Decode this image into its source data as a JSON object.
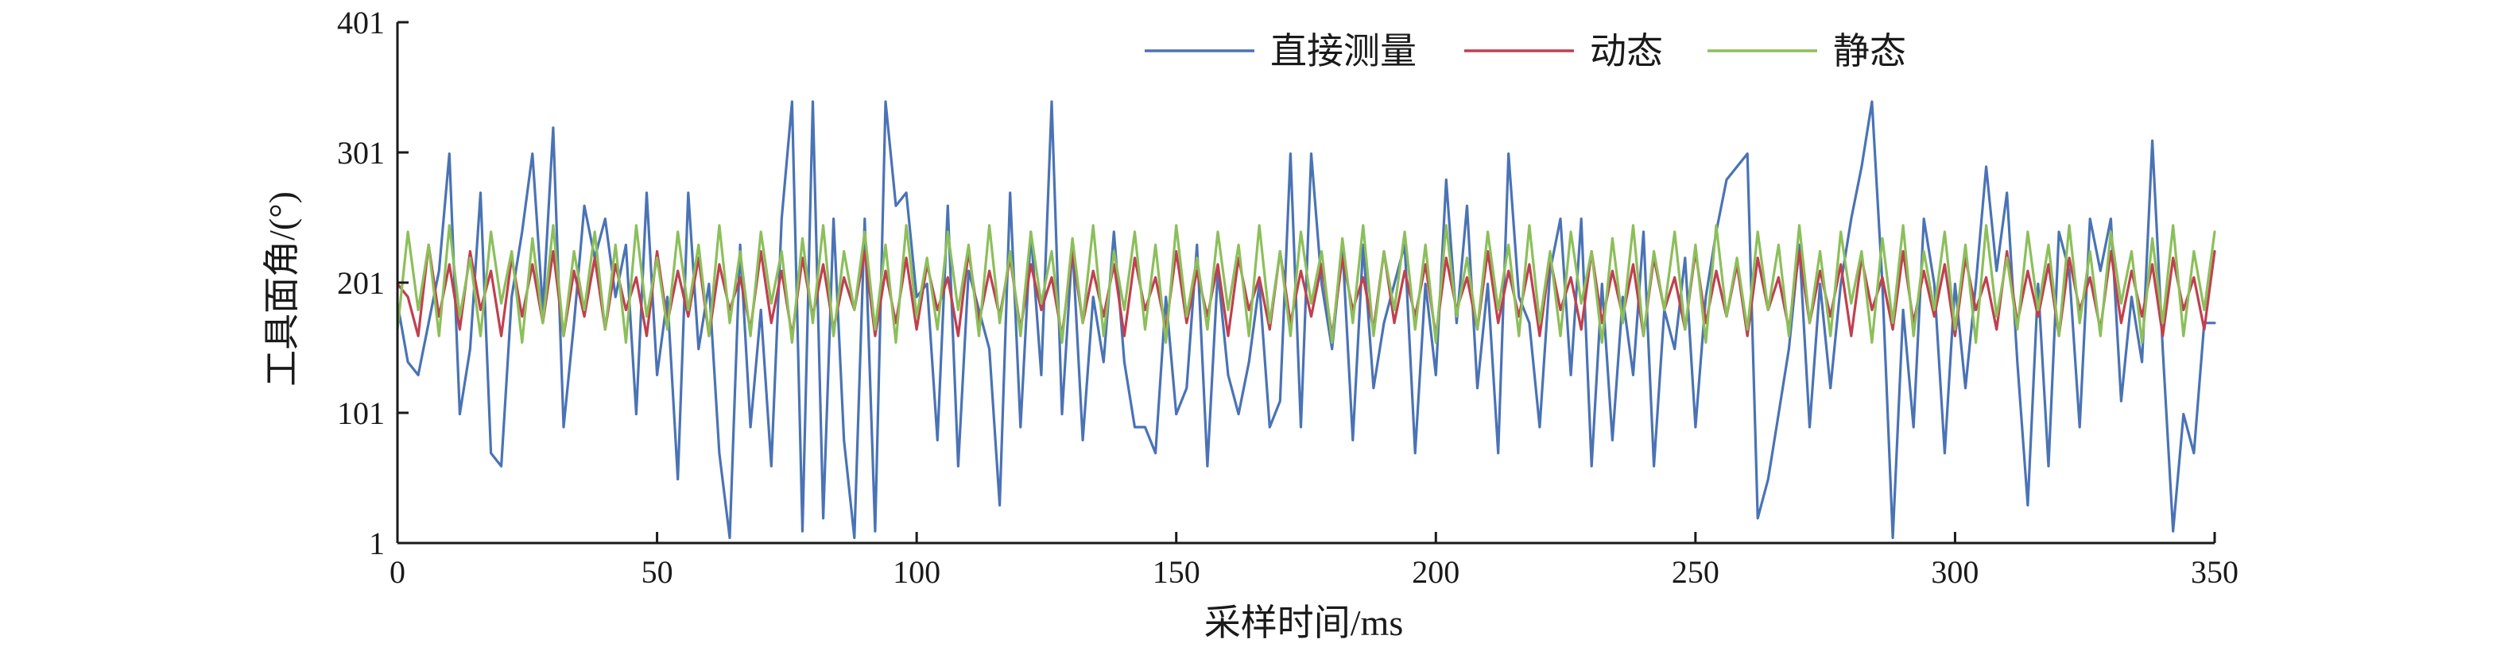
{
  "chart_data": {
    "type": "line",
    "title": "",
    "xlabel": "采样时间/ms",
    "ylabel": "工具面角/(°)",
    "xlim": [
      0,
      350
    ],
    "ylim": [
      1,
      401
    ],
    "xticks": [
      0,
      50,
      100,
      150,
      200,
      250,
      300,
      350
    ],
    "yticks": [
      1,
      101,
      201,
      301,
      401
    ],
    "grid": false,
    "legend_position": "top-center",
    "x": [
      0,
      2,
      4,
      6,
      8,
      10,
      12,
      14,
      16,
      18,
      20,
      22,
      24,
      26,
      28,
      30,
      32,
      34,
      36,
      38,
      40,
      42,
      44,
      46,
      48,
      50,
      52,
      54,
      56,
      58,
      60,
      62,
      64,
      66,
      68,
      70,
      72,
      74,
      76,
      78,
      80,
      82,
      84,
      86,
      88,
      90,
      92,
      94,
      96,
      98,
      100,
      102,
      104,
      106,
      108,
      110,
      112,
      114,
      116,
      118,
      120,
      122,
      124,
      126,
      128,
      130,
      132,
      134,
      136,
      138,
      140,
      142,
      144,
      146,
      148,
      150,
      152,
      154,
      156,
      158,
      160,
      162,
      164,
      166,
      168,
      170,
      172,
      174,
      176,
      178,
      180,
      182,
      184,
      186,
      188,
      190,
      192,
      194,
      196,
      198,
      200,
      202,
      204,
      206,
      208,
      210,
      212,
      214,
      216,
      218,
      220,
      222,
      224,
      226,
      228,
      230,
      232,
      234,
      236,
      238,
      240,
      242,
      244,
      246,
      248,
      250,
      252,
      254,
      256,
      258,
      260,
      262,
      264,
      266,
      268,
      270,
      272,
      274,
      276,
      278,
      280,
      282,
      284,
      286,
      288,
      290,
      292,
      294,
      296,
      298,
      300,
      302,
      304,
      306,
      308,
      310,
      312,
      314,
      316,
      318,
      320,
      322,
      324,
      326,
      328,
      330,
      332,
      334,
      336,
      338,
      340,
      342,
      344,
      346,
      348,
      350
    ],
    "series": [
      {
        "name": "直接测量",
        "color": "#4a73b5",
        "values": [
          185,
          140,
          130,
          170,
          210,
          300,
          100,
          150,
          270,
          70,
          60,
          190,
          240,
          300,
          180,
          320,
          90,
          170,
          260,
          220,
          250,
          190,
          230,
          100,
          270,
          130,
          190,
          50,
          270,
          150,
          200,
          70,
          5,
          230,
          90,
          180,
          60,
          250,
          340,
          10,
          340,
          20,
          250,
          80,
          5,
          250,
          10,
          340,
          260,
          270,
          190,
          200,
          80,
          260,
          60,
          210,
          180,
          150,
          30,
          270,
          90,
          240,
          130,
          340,
          100,
          230,
          80,
          190,
          140,
          240,
          140,
          90,
          90,
          70,
          190,
          100,
          120,
          230,
          60,
          210,
          130,
          100,
          140,
          200,
          90,
          110,
          300,
          90,
          300,
          200,
          150,
          230,
          80,
          230,
          120,
          170,
          200,
          230,
          70,
          200,
          130,
          280,
          170,
          260,
          120,
          200,
          70,
          300,
          190,
          170,
          90,
          210,
          250,
          130,
          250,
          60,
          200,
          80,
          190,
          130,
          240,
          60,
          180,
          150,
          220,
          90,
          190,
          240,
          280,
          290,
          300,
          20,
          50,
          100,
          150,
          230,
          90,
          200,
          120,
          200,
          250,
          290,
          340,
          200,
          5,
          180,
          90,
          250,
          200,
          70,
          200,
          120,
          200,
          290,
          210,
          270,
          140,
          30,
          200,
          60,
          240,
          210,
          90,
          250,
          210,
          250,
          110,
          190,
          140,
          310,
          150,
          10,
          100,
          70,
          170,
          170
        ]
      },
      {
        "name": "动态",
        "color": "#c0404f",
        "values": [
          200,
          190,
          160,
          230,
          175,
          215,
          165,
          225,
          180,
          210,
          160,
          220,
          175,
          215,
          170,
          225,
          160,
          210,
          175,
          220,
          165,
          215,
          180,
          205,
          160,
          225,
          170,
          210,
          175,
          220,
          160,
          215,
          180,
          205,
          165,
          225,
          170,
          210,
          160,
          220,
          175,
          215,
          165,
          205,
          180,
          225,
          160,
          210,
          170,
          220,
          165,
          215,
          180,
          205,
          160,
          225,
          170,
          210,
          175,
          220,
          165,
          215,
          180,
          205,
          160,
          225,
          170,
          210,
          175,
          215,
          160,
          220,
          180,
          205,
          165,
          225,
          170,
          210,
          175,
          215,
          160,
          220,
          180,
          205,
          165,
          225,
          170,
          210,
          175,
          215,
          160,
          220,
          180,
          205,
          165,
          225,
          170,
          210,
          175,
          215,
          160,
          220,
          180,
          205,
          165,
          225,
          170,
          210,
          175,
          215,
          160,
          220,
          180,
          205,
          165,
          225,
          170,
          210,
          175,
          215,
          160,
          220,
          180,
          205,
          165,
          225,
          170,
          210,
          175,
          215,
          160,
          220,
          180,
          205,
          165,
          225,
          170,
          210,
          175,
          215,
          160,
          220,
          180,
          205,
          165,
          225,
          170,
          210,
          175,
          215,
          160,
          220,
          180,
          205,
          165,
          225,
          170,
          210,
          175,
          215,
          160,
          220,
          180,
          205,
          165,
          225,
          170,
          210,
          175,
          215,
          160,
          220,
          180,
          205,
          165,
          225
        ]
      },
      {
        "name": "静态",
        "color": "#8cbf5a",
        "values": [
          165,
          240,
          180,
          230,
          160,
          245,
          175,
          220,
          160,
          240,
          185,
          225,
          155,
          235,
          170,
          245,
          160,
          225,
          180,
          240,
          165,
          230,
          155,
          245,
          175,
          220,
          165,
          240,
          180,
          230,
          160,
          245,
          170,
          225,
          160,
          240,
          185,
          225,
          155,
          235,
          170,
          245,
          160,
          225,
          180,
          240,
          165,
          230,
          155,
          245,
          175,
          220,
          165,
          240,
          180,
          230,
          160,
          245,
          170,
          225,
          160,
          240,
          185,
          225,
          155,
          235,
          170,
          245,
          160,
          225,
          180,
          240,
          165,
          230,
          155,
          245,
          175,
          220,
          165,
          240,
          180,
          230,
          160,
          245,
          170,
          225,
          160,
          240,
          185,
          225,
          155,
          235,
          170,
          245,
          160,
          225,
          180,
          240,
          165,
          230,
          155,
          245,
          175,
          220,
          165,
          240,
          180,
          230,
          160,
          245,
          170,
          225,
          160,
          240,
          185,
          225,
          155,
          235,
          170,
          245,
          160,
          225,
          180,
          240,
          165,
          230,
          155,
          245,
          175,
          220,
          165,
          240,
          180,
          230,
          160,
          245,
          170,
          225,
          160,
          240,
          185,
          225,
          155,
          235,
          170,
          245,
          160,
          225,
          180,
          240,
          165,
          230,
          155,
          245,
          175,
          220,
          165,
          240,
          180,
          230,
          160,
          245,
          170,
          225,
          160,
          240,
          185,
          225,
          155,
          235,
          170,
          245,
          160,
          225,
          180,
          240
        ]
      }
    ]
  }
}
